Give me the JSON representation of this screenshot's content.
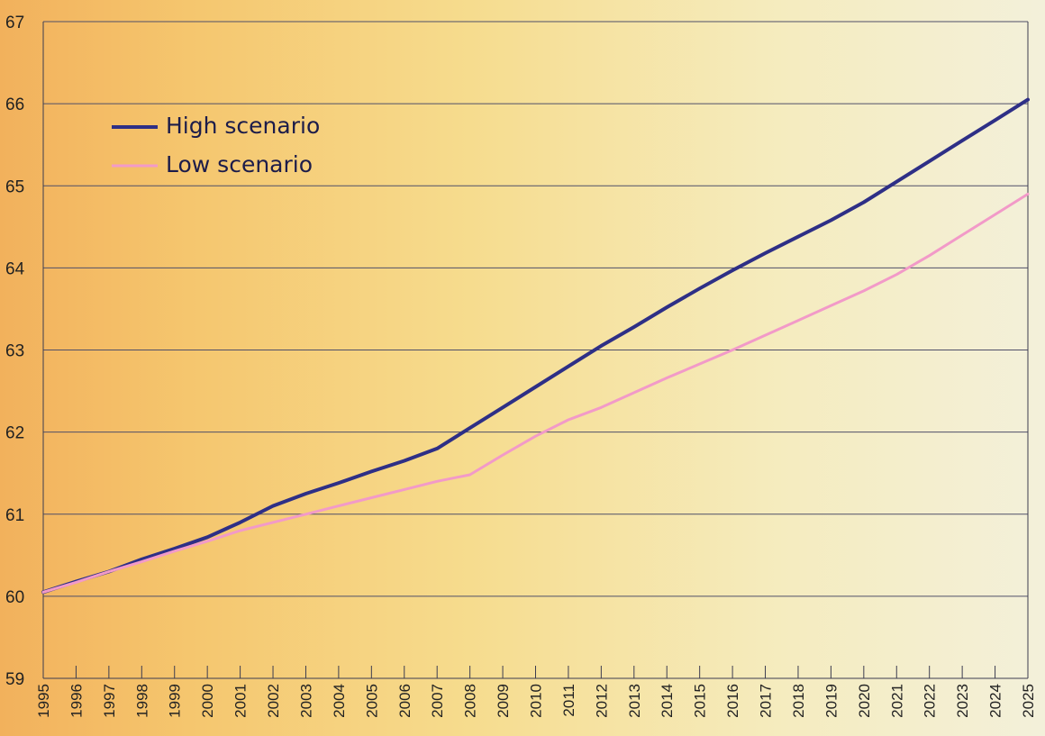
{
  "chart_data": {
    "type": "line",
    "title": "",
    "xlabel": "",
    "ylabel": "",
    "x": [
      1995,
      1996,
      1997,
      1998,
      1999,
      2000,
      2001,
      2002,
      2003,
      2004,
      2005,
      2006,
      2007,
      2008,
      2009,
      2010,
      2011,
      2012,
      2013,
      2014,
      2015,
      2016,
      2017,
      2018,
      2019,
      2020,
      2021,
      2022,
      2023,
      2024,
      2025
    ],
    "x_tick_labels": [
      "1995",
      "1996",
      "1997",
      "1998",
      "1999",
      "2000",
      "2001",
      "2002",
      "2003",
      "2004",
      "2005",
      "2006",
      "2007",
      "2008",
      "2009",
      "2010",
      "2011",
      "2012",
      "2013",
      "2014",
      "2015",
      "2016",
      "2017",
      "2018",
      "2019",
      "2020",
      "2021",
      "2022",
      "2023",
      "2024",
      "2025"
    ],
    "y_tick_labels": [
      "59",
      "60",
      "61",
      "62",
      "63",
      "64",
      "65",
      "66",
      "67"
    ],
    "ylim": [
      59,
      67
    ],
    "grid": "horizontal",
    "legend_position": "top-left",
    "series": [
      {
        "name": "High scenario",
        "color": "#2e2f86",
        "values": [
          60.05,
          60.18,
          60.3,
          60.45,
          60.58,
          60.72,
          60.9,
          61.1,
          61.25,
          61.38,
          61.52,
          61.65,
          61.8,
          62.05,
          62.3,
          62.55,
          62.8,
          63.05,
          63.28,
          63.52,
          63.75,
          63.97,
          64.18,
          64.38,
          64.58,
          64.8,
          65.05,
          65.3,
          65.55,
          65.8,
          66.05
        ]
      },
      {
        "name": "Low scenario",
        "color": "#f29ac8",
        "values": [
          60.05,
          60.17,
          60.3,
          60.42,
          60.55,
          60.67,
          60.8,
          60.9,
          61.0,
          61.1,
          61.2,
          61.3,
          61.4,
          61.48,
          61.72,
          61.95,
          62.15,
          62.3,
          62.48,
          62.66,
          62.83,
          63.0,
          63.18,
          63.36,
          63.54,
          63.72,
          63.92,
          64.15,
          64.4,
          64.65,
          64.9
        ]
      }
    ]
  }
}
